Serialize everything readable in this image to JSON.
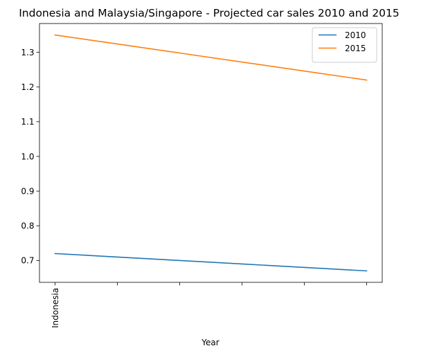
{
  "chart_data": {
    "type": "line",
    "title": "Indonesia and Malaysia/Singapore - Projected car sales 2010 and 2015",
    "xlabel": "Year",
    "ylabel": "",
    "x_tick_labels": [
      "Indonesia",
      "",
      "",
      "",
      "",
      ""
    ],
    "x": [
      0,
      1,
      2,
      3,
      4,
      5
    ],
    "xlim": [
      -0.25,
      5.25
    ],
    "ylim": [
      0.637,
      1.383
    ],
    "y_ticks": [
      0.7,
      0.8,
      0.9,
      1.0,
      1.1,
      1.2,
      1.3
    ],
    "y_tick_labels": [
      "0.7",
      "0.8",
      "0.9",
      "1.0",
      "1.1",
      "1.2",
      "1.3"
    ],
    "series": [
      {
        "name": "2010",
        "color": "#1f77b4",
        "values": [
          0.72,
          0.71,
          0.7,
          0.69,
          0.68,
          0.67
        ]
      },
      {
        "name": "2015",
        "color": "#ff7f0e",
        "values": [
          1.35,
          1.324,
          1.298,
          1.272,
          1.246,
          1.22
        ]
      }
    ],
    "grid": false,
    "legend_position": "top-right"
  }
}
